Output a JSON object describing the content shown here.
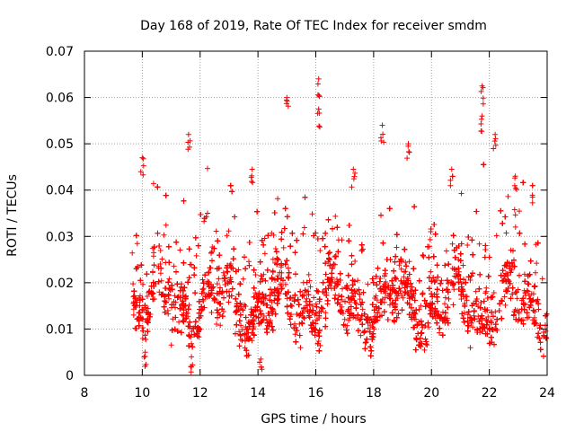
{
  "chart_data": {
    "type": "scatter",
    "title": "Day 168 of 2019, Rate Of TEC Index for receiver smdm",
    "xlabel": "GPS time / hours",
    "ylabel": "ROTI / TECUs",
    "xlim": [
      8,
      24
    ],
    "ylim": [
      0,
      0.07
    ],
    "xticks": [
      8,
      10,
      12,
      14,
      16,
      18,
      20,
      22,
      24
    ],
    "xtick_labels": [
      "8",
      "10",
      "12",
      "14",
      "16",
      "18",
      "20",
      "22",
      "24"
    ],
    "yticks": [
      0,
      0.01,
      0.02,
      0.03,
      0.04,
      0.05,
      0.06,
      0.07
    ],
    "ytick_labels": [
      "0",
      "0.01",
      "0.02",
      "0.03",
      "0.04",
      "0.05",
      "0.06",
      "0.07"
    ],
    "grid": true,
    "marker": "+",
    "color": "#ff0000",
    "data_start_hour": 9.65,
    "data_end_hour": 24,
    "approx_point_count": 5200,
    "notable_points": [
      {
        "x": 16.1,
        "y": 0.064
      },
      {
        "x": 21.75,
        "y": 0.0625
      },
      {
        "x": 15.0,
        "y": 0.06
      },
      {
        "x": 16.1,
        "y": 0.0575
      },
      {
        "x": 21.75,
        "y": 0.056
      },
      {
        "x": 18.3,
        "y": 0.054
      },
      {
        "x": 11.6,
        "y": 0.052
      },
      {
        "x": 22.2,
        "y": 0.052
      },
      {
        "x": 19.2,
        "y": 0.05
      },
      {
        "x": 10.0,
        "y": 0.047
      },
      {
        "x": 13.8,
        "y": 0.0445
      },
      {
        "x": 17.3,
        "y": 0.0445
      },
      {
        "x": 20.7,
        "y": 0.0445
      },
      {
        "x": 22.9,
        "y": 0.043
      },
      {
        "x": 23.5,
        "y": 0.041
      },
      {
        "x": 14.1,
        "y": 0.0035
      },
      {
        "x": 10.1,
        "y": 0.005
      },
      {
        "x": 11.7,
        "y": 0.004
      }
    ]
  }
}
